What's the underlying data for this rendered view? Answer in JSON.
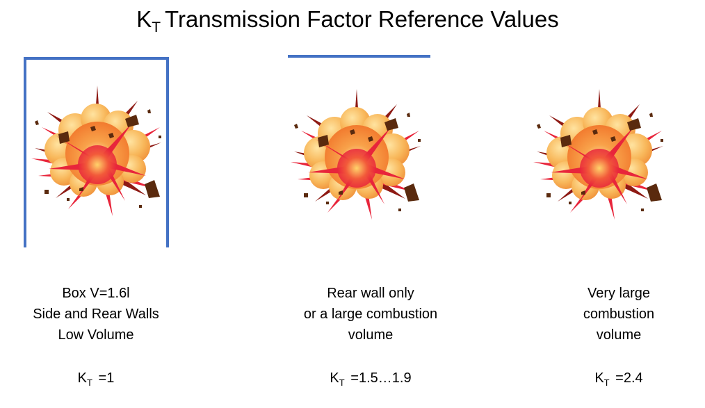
{
  "title": {
    "k_letter": "K",
    "k_subscript": "T",
    "text": "Transmission Factor Reference Values"
  },
  "colors": {
    "wall_blue": "#4472C4",
    "explosion_outer": "#F7B24D",
    "explosion_core": "#E8253B",
    "debris": "#5A2A0E"
  },
  "icons": [
    "explosion-icon",
    "box-walls",
    "rear-wall-line"
  ],
  "cases": [
    {
      "lines": [
        "Box V=1.6l",
        "Side and Rear Walls",
        "Low Volume"
      ],
      "kt_letter": "K",
      "kt_sub": "T",
      "kt_value": " =1"
    },
    {
      "lines": [
        "Rear wall only",
        "or a large combustion",
        "volume"
      ],
      "kt_letter": "K",
      "kt_sub": "T",
      "kt_value": " =1.5…1.9"
    },
    {
      "lines": [
        "Very large",
        "combustion",
        "volume"
      ],
      "kt_letter": "K",
      "kt_sub": "T",
      "kt_value": " =2.4"
    }
  ]
}
